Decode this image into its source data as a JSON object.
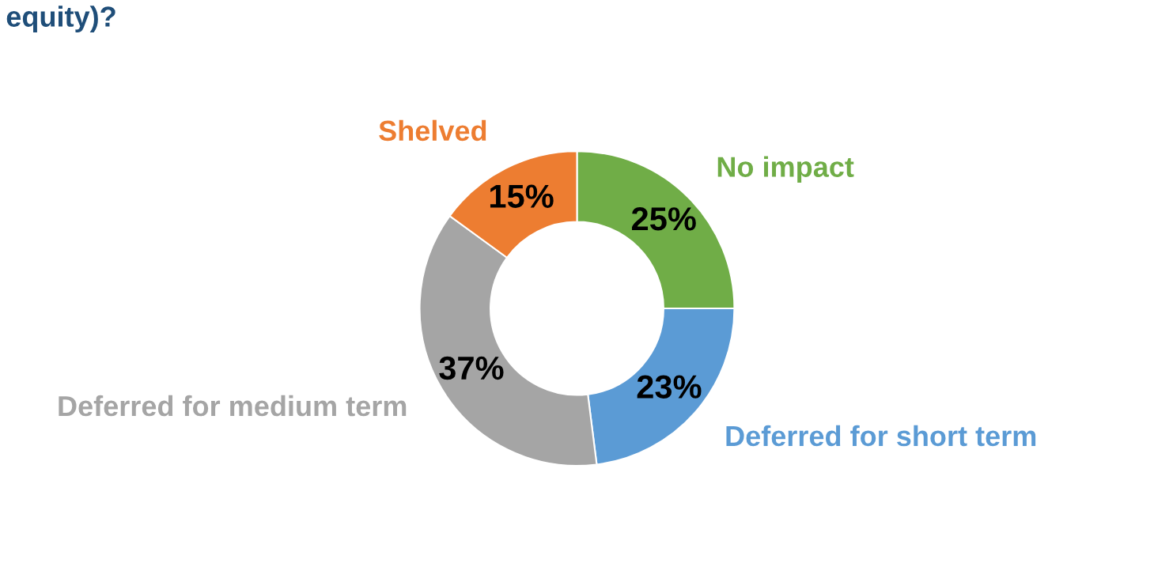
{
  "chart_data": {
    "type": "donut",
    "title": "equity)?",
    "categories": [
      "No impact",
      "Deferred for short term",
      "Deferred for medium term",
      "Shelved"
    ],
    "values": [
      25,
      23,
      37,
      15
    ],
    "colors": [
      "#70ad47",
      "#5b9bd5",
      "#a5a5a5",
      "#ed7d31"
    ],
    "value_labels": [
      "25%",
      "23%",
      "37%",
      "15%"
    ]
  }
}
